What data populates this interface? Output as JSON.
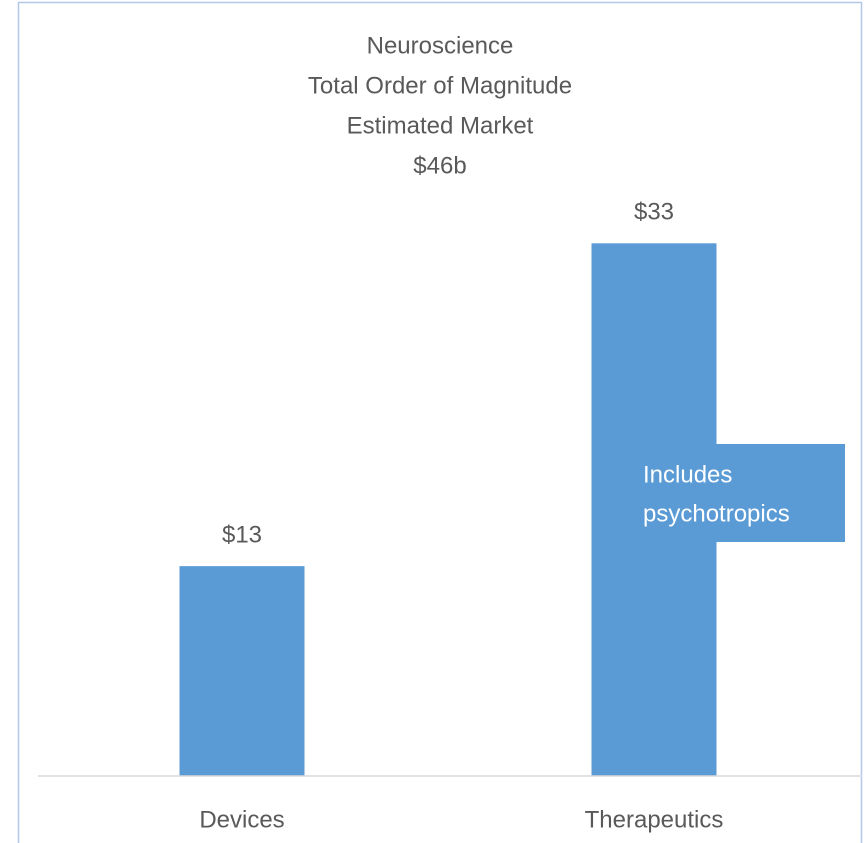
{
  "chart_data": {
    "type": "bar",
    "title": [
      "Neuroscience",
      "Total Order of Magnitude",
      "Estimated Market",
      "$46b"
    ],
    "categories": [
      "Devices",
      "Therapeutics"
    ],
    "values": [
      13,
      33
    ],
    "value_labels": [
      "$13",
      "$33"
    ],
    "color": "#5b9bd5",
    "ylim": [
      0,
      35
    ],
    "annotation": [
      "Includes",
      "psychotropics"
    ]
  }
}
